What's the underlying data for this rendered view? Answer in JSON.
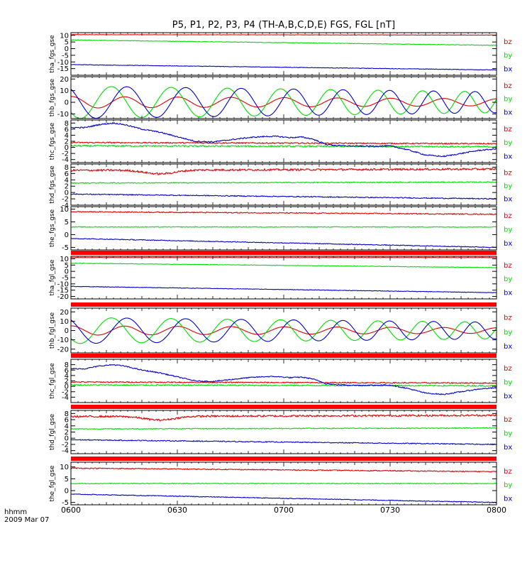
{
  "title": "P5, P1, P2, P3, P4 (TH-A,B,C,D,E) FGS, FGL [nT]",
  "colors": {
    "bx": "#0000cc",
    "by": "#00dd00",
    "bz": "#dd0000",
    "bar": "#ff0000"
  },
  "x_axis": {
    "unit_label": "hhmm",
    "date_label": "2009 Mar 07",
    "ticks": [
      "0600",
      "0630",
      "0700",
      "0730",
      "0800"
    ]
  },
  "chart_data": [
    {
      "type": "line",
      "ylabel": "tha_fgs_gse",
      "ylim": [
        -20,
        12
      ],
      "yticks": [
        10,
        5,
        0,
        -5,
        -10,
        -15
      ],
      "bar_below": false,
      "series": [
        {
          "name": "bz",
          "shape": "trend",
          "start": 10.5,
          "end": 10.2,
          "wiggle": 0.1
        },
        {
          "name": "by",
          "shape": "trend",
          "start": 6.5,
          "end": 2.5,
          "wiggle": 0.2
        },
        {
          "name": "bx",
          "shape": "trend",
          "start": -12.0,
          "end": -16.0,
          "wiggle": 0.2
        }
      ]
    },
    {
      "type": "line",
      "ylabel": "thb_fgs_gse",
      "ylim": [
        -14,
        22
      ],
      "yticks": [
        20,
        10,
        0,
        -10
      ],
      "bar_below": false,
      "series": [
        {
          "name": "bz",
          "shape": "sine",
          "amp_start": 5,
          "amp_end": 3,
          "period_start": 15,
          "period_end": 15,
          "phase": 1.5,
          "offset": 0
        },
        {
          "name": "by",
          "shape": "sine",
          "amp_start": 14,
          "amp_end": 9,
          "period_start": 18,
          "period_end": 11,
          "phase": 3.8,
          "offset": 0
        },
        {
          "name": "bx",
          "shape": "sine",
          "amp_start": 14,
          "amp_end": 9,
          "period_start": 18,
          "period_end": 11,
          "phase": 2.2,
          "offset": 0
        }
      ]
    },
    {
      "type": "line",
      "ylabel": "thc_fgs_gse",
      "ylim": [
        -5,
        9
      ],
      "yticks": [
        8,
        6,
        4,
        2,
        0,
        -2,
        -4
      ],
      "bar_below": false,
      "series": [
        {
          "name": "bz",
          "shape": "trend",
          "start": 1.6,
          "end": 1.2,
          "wiggle": 0.2
        },
        {
          "name": "by",
          "shape": "trend",
          "start": 0.5,
          "end": 0.2,
          "wiggle": 0.25
        },
        {
          "name": "bx",
          "shape": "points",
          "t": [
            0,
            4,
            8,
            12,
            15,
            20,
            25,
            30,
            35,
            40,
            45,
            50,
            55,
            58,
            62,
            65,
            68,
            72,
            75,
            80,
            85,
            90,
            95,
            100,
            105,
            110,
            115,
            120
          ],
          "v": [
            6.5,
            6.5,
            7.5,
            8.0,
            7.5,
            6.0,
            5.0,
            3.5,
            2.0,
            1.8,
            2.5,
            3.2,
            3.6,
            3.6,
            3.2,
            3.4,
            2.8,
            1.0,
            0.6,
            0.4,
            0.4,
            0.5,
            -0.8,
            -2.5,
            -3.0,
            -2.0,
            -1.0,
            -0.5
          ],
          "wiggle": 0.2
        }
      ]
    },
    {
      "type": "line",
      "ylabel": "thd_fgs_gse",
      "ylim": [
        -4,
        9
      ],
      "yticks": [
        8,
        6,
        4,
        2,
        0,
        -2,
        -4
      ],
      "bar_below": false,
      "series": [
        {
          "name": "bz",
          "shape": "trend",
          "start": 7.0,
          "end": 7.4,
          "wiggle": 0.3,
          "dip": {
            "t": 25,
            "depth": 1.2,
            "width": 6
          }
        },
        {
          "name": "by",
          "shape": "trend",
          "start": 3.0,
          "end": 3.3,
          "wiggle": 0.15
        },
        {
          "name": "bx",
          "shape": "trend",
          "start": -0.5,
          "end": -2.0,
          "wiggle": 0.15
        }
      ]
    },
    {
      "type": "line",
      "ylabel": "the_fgs_gse",
      "ylim": [
        -6,
        11
      ],
      "yticks": [
        10,
        5,
        0,
        -5
      ],
      "bar_below": true,
      "series": [
        {
          "name": "bz",
          "shape": "trend",
          "start": 9.0,
          "end": 8.0,
          "wiggle": 0.2
        },
        {
          "name": "by",
          "shape": "trend",
          "start": 3.0,
          "end": 3.0,
          "wiggle": 0.15
        },
        {
          "name": "bx",
          "shape": "trend",
          "start": -1.5,
          "end": -5.0,
          "wiggle": 0.15
        }
      ]
    },
    {
      "type": "line",
      "ylabel": "tha_fgl_gse",
      "ylim": [
        -22,
        12
      ],
      "yticks": [
        10,
        5,
        0,
        -5,
        -10,
        -15,
        -20
      ],
      "bar_below": true,
      "series": [
        {
          "name": "bz",
          "shape": "trend",
          "start": 11.0,
          "end": 11.0,
          "wiggle": 0.1
        },
        {
          "name": "by",
          "shape": "trend",
          "start": 6.5,
          "end": 3.0,
          "wiggle": 0.2
        },
        {
          "name": "bx",
          "shape": "trend",
          "start": -12.0,
          "end": -17.0,
          "wiggle": 0.2
        }
      ]
    },
    {
      "type": "line",
      "ylabel": "thb_fgl_gse",
      "ylim": [
        -24,
        24
      ],
      "yticks": [
        20,
        10,
        0,
        -10,
        -20
      ],
      "bar_below": true,
      "series": [
        {
          "name": "bz",
          "shape": "sine",
          "amp_start": 5,
          "amp_end": 3,
          "period_start": 15,
          "period_end": 15,
          "phase": 1.5,
          "offset": 0
        },
        {
          "name": "by",
          "shape": "sine",
          "amp_start": 14,
          "amp_end": 9,
          "period_start": 18,
          "period_end": 11,
          "phase": 3.8,
          "offset": 0
        },
        {
          "name": "bx",
          "shape": "sine",
          "amp_start": 14,
          "amp_end": 9,
          "period_start": 18,
          "period_end": 11,
          "phase": 2.2,
          "offset": 0
        }
      ]
    },
    {
      "type": "line",
      "ylabel": "thc_fgl_gse",
      "ylim": [
        -6,
        10
      ],
      "yticks": [
        8,
        6,
        4,
        2,
        0,
        -2,
        -4
      ],
      "bar_below": true,
      "series": [
        {
          "name": "bz",
          "shape": "trend",
          "start": 1.6,
          "end": 1.2,
          "wiggle": 0.2
        },
        {
          "name": "by",
          "shape": "trend",
          "start": 0.5,
          "end": 0.2,
          "wiggle": 0.25
        },
        {
          "name": "bx",
          "shape": "points",
          "t": [
            0,
            4,
            8,
            12,
            15,
            20,
            25,
            30,
            35,
            40,
            45,
            50,
            55,
            58,
            62,
            65,
            68,
            72,
            75,
            80,
            85,
            90,
            95,
            100,
            105,
            110,
            115,
            120
          ],
          "v": [
            6.5,
            6.5,
            7.5,
            8.0,
            7.5,
            6.0,
            5.0,
            3.5,
            2.0,
            1.8,
            2.5,
            3.2,
            3.6,
            3.6,
            3.2,
            3.4,
            2.8,
            1.0,
            0.6,
            0.4,
            0.4,
            0.5,
            -0.8,
            -2.5,
            -3.0,
            -2.0,
            -1.0,
            -0.5
          ],
          "wiggle": 0.2
        }
      ]
    },
    {
      "type": "line",
      "ylabel": "thd_fgl_gse",
      "ylim": [
        -5,
        9
      ],
      "yticks": [
        8,
        6,
        4,
        2,
        0,
        -2,
        -4
      ],
      "bar_below": true,
      "series": [
        {
          "name": "bz",
          "shape": "trend",
          "start": 7.0,
          "end": 7.4,
          "wiggle": 0.3,
          "dip": {
            "t": 25,
            "depth": 1.2,
            "width": 6
          }
        },
        {
          "name": "by",
          "shape": "trend",
          "start": 3.0,
          "end": 3.3,
          "wiggle": 0.15
        },
        {
          "name": "bx",
          "shape": "trend",
          "start": -0.5,
          "end": -2.0,
          "wiggle": 0.15
        }
      ]
    },
    {
      "type": "line",
      "ylabel": "the_fgl_gse",
      "ylim": [
        -6,
        12
      ],
      "yticks": [
        10,
        5,
        0,
        -5
      ],
      "bar_below": false,
      "series": [
        {
          "name": "bz",
          "shape": "trend",
          "start": 9.5,
          "end": 8.0,
          "wiggle": 0.2
        },
        {
          "name": "by",
          "shape": "trend",
          "start": 3.0,
          "end": 3.0,
          "wiggle": 0.15
        },
        {
          "name": "bx",
          "shape": "trend",
          "start": -1.5,
          "end": -5.0,
          "wiggle": 0.15
        }
      ]
    }
  ]
}
